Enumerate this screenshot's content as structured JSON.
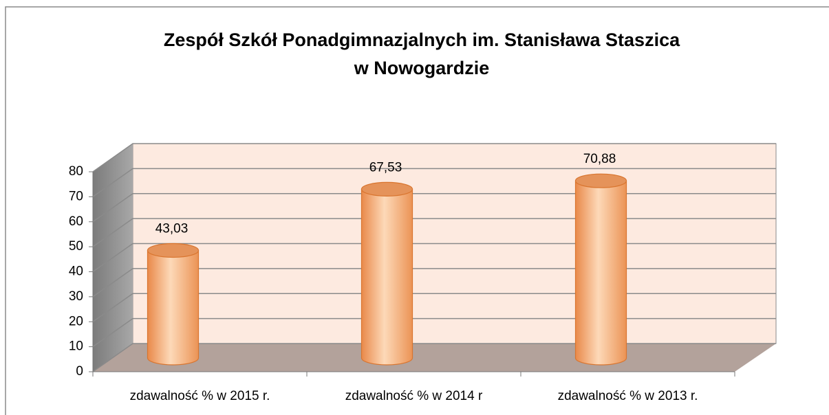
{
  "chart_data": {
    "type": "bar3d",
    "title": [
      "Zespół Szkół Ponadgimnazjalnych  im. Stanisława Staszica",
      "w Nowogardzie"
    ],
    "categories": [
      "zdawalność % w 2015 r.",
      "zdawalność % w 2014 r",
      "zdawalność % w 2013 r."
    ],
    "values": [
      43.03,
      67.53,
      70.88
    ],
    "value_labels": [
      "43,03",
      "67,53",
      "70,88"
    ],
    "color": "#f4a46c",
    "ylim": [
      0,
      80
    ],
    "yticks": [
      0,
      10,
      20,
      30,
      40,
      50,
      60,
      70,
      80
    ],
    "grid": true
  }
}
